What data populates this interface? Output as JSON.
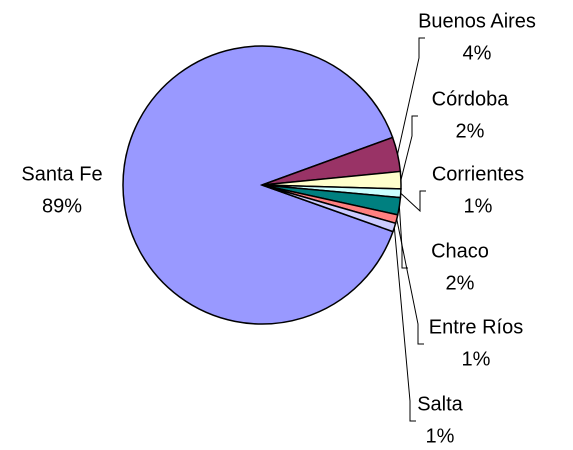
{
  "chart_data": {
    "type": "pie",
    "categories": [
      "Santa Fe",
      "Buenos Aires",
      "Córdoba",
      "Corrientes",
      "Chaco",
      "Entre Ríos",
      "Salta"
    ],
    "values": [
      89,
      4,
      2,
      1,
      2,
      1,
      1
    ],
    "value_labels": [
      "89%",
      "4%",
      "2%",
      "1%",
      "2%",
      "1%",
      "1%"
    ],
    "colors": [
      "#9999FF",
      "#993366",
      "#FFFFCC",
      "#CCFFFF",
      "#008080",
      "#FF8080",
      "#CCCCFF"
    ]
  }
}
